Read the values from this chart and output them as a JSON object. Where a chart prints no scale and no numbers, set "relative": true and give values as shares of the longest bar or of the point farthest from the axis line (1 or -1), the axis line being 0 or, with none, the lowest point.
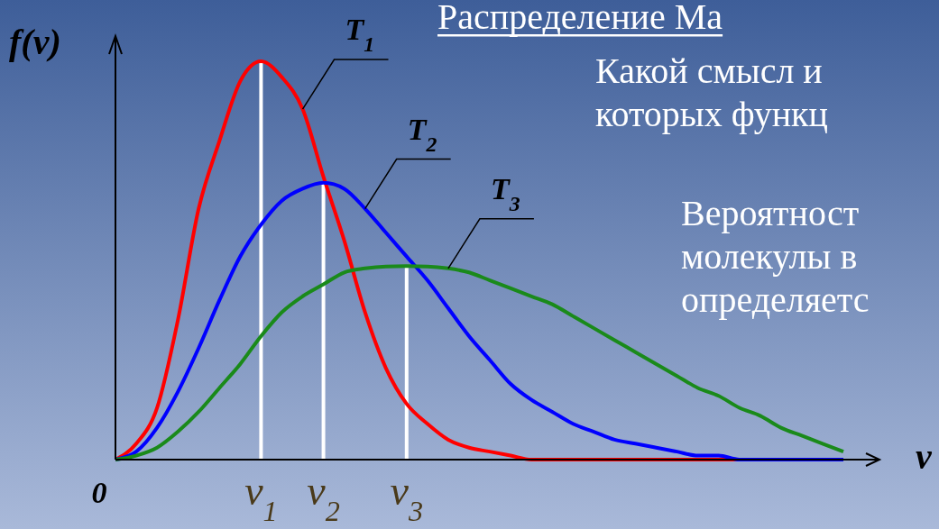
{
  "chart_data": {
    "type": "line",
    "title": "Распределение Ма",
    "xlabel": "v",
    "ylabel": "f(v)",
    "relative": true,
    "categories": [
      null,
      null,
      null,
      null,
      null,
      null,
      null,
      null,
      null,
      null,
      null,
      null,
      null,
      null,
      null,
      null,
      null,
      null,
      null,
      null,
      null,
      null,
      null,
      null,
      null,
      null,
      null,
      null,
      null,
      null,
      null,
      null,
      null,
      null,
      null,
      null
    ],
    "marker": "none",
    "line_style": "solid",
    "series": [
      {
        "name": "T$_{1}$",
        "color": "#ff0000",
        "values": [
          0,
          0.04,
          0.13,
          0.35,
          0.63,
          0.8,
          0.95,
          1,
          0.96,
          0.88,
          0.71,
          0.55,
          0.37,
          0.23,
          0.14,
          0.09,
          0.05,
          0.03,
          0.02,
          0.01,
          0,
          0,
          0,
          0,
          0,
          0,
          0,
          0,
          0,
          0,
          0,
          0,
          null,
          null,
          null,
          null
        ]
      },
      {
        "name": "T$_{2}$",
        "color": "#0000ff",
        "values": [
          0,
          0.02,
          0.08,
          0.17,
          0.28,
          0.4,
          0.51,
          0.59,
          0.65,
          0.68,
          0.695,
          0.68,
          0.63,
          0.57,
          0.51,
          0.45,
          0.38,
          0.31,
          0.25,
          0.19,
          0.15,
          0.12,
          0.09,
          0.07,
          0.05,
          0.04,
          0.03,
          0.02,
          0.01,
          0.01,
          0,
          0,
          0,
          0,
          0,
          0
        ]
      },
      {
        "name": "T$_{3}$",
        "color": "#1a8a1a",
        "values": [
          0,
          0.01,
          0.03,
          0.07,
          0.12,
          0.18,
          0.24,
          0.31,
          0.37,
          0.41,
          0.44,
          0.47,
          0.48,
          0.485,
          0.486,
          0.485,
          0.48,
          0.47,
          0.45,
          0.43,
          0.41,
          0.39,
          0.36,
          0.33,
          0.3,
          0.27,
          0.24,
          0.21,
          0.18,
          0.16,
          0.13,
          0.11,
          0.08,
          0.06,
          0.04,
          0.02
        ]
      }
    ],
    "annotations": [
      "Какой смысл и",
      "которых функц",
      "Вероятност",
      "молекулы в",
      "определяетс",
      "0",
      "v$_{1}$",
      "v$_{2}$",
      "v$_{3}$"
    ]
  }
}
